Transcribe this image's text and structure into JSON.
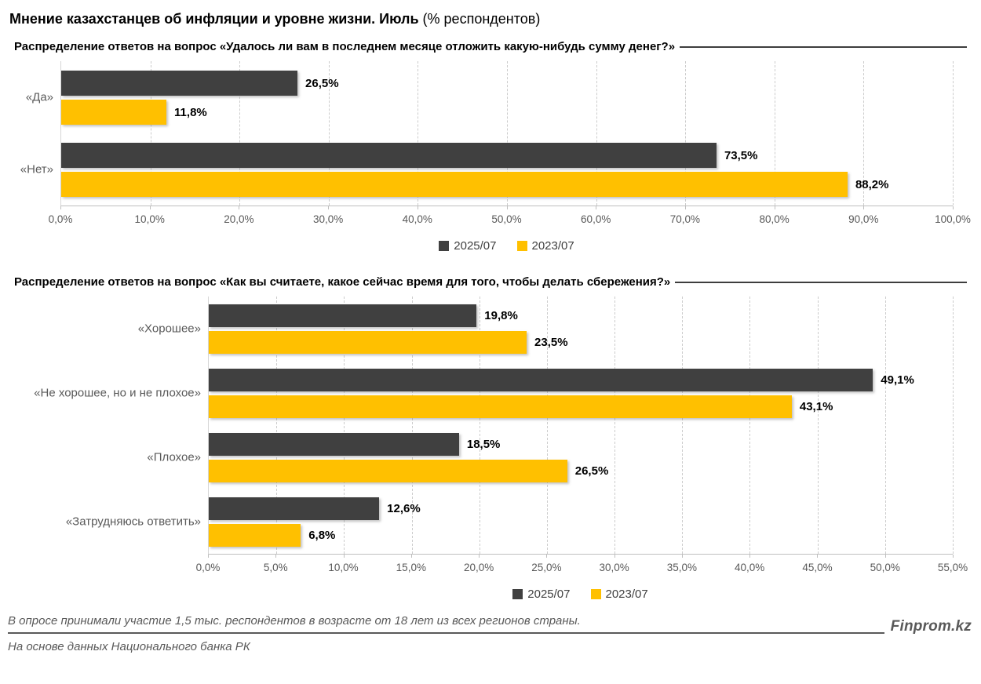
{
  "header": {
    "title_bold": "Мнение казахстанцев об инфляции и уровне жизни. Июль",
    "title_normal": " (% респондентов)"
  },
  "footer": {
    "note1": "В опросе принимали участие 1,5 тыс. респондентов в возрасте от 18 лет из всех регионов страны.",
    "note2": "На основе данных Национального банка РК",
    "brand": "Finprom.kz"
  },
  "colors": {
    "series_2025": "#404040",
    "series_2023": "#FFC000",
    "axis_text": "#595959",
    "gridline": "#CCCCCC"
  },
  "chart_data": [
    {
      "type": "bar",
      "orientation": "horizontal",
      "title": "Распределение ответов на вопрос «Удалось ли вам в последнем месяце отложить какую-нибудь сумму денег?»",
      "categories": [
        "«Да»",
        "«Нет»"
      ],
      "series": [
        {
          "name": "2025/07",
          "color": "#404040",
          "values": [
            26.5,
            73.5
          ]
        },
        {
          "name": "2023/07",
          "color": "#FFC000",
          "values": [
            11.8,
            88.2
          ]
        }
      ],
      "xlabel": "",
      "ylabel": "",
      "xlim": [
        0,
        100
      ],
      "xtick_values": [
        0,
        10,
        20,
        30,
        40,
        50,
        60,
        70,
        80,
        90,
        100
      ],
      "xtick_labels": [
        "0,0%",
        "10,0%",
        "20,0%",
        "30,0%",
        "40,0%",
        "50,0%",
        "60,0%",
        "70,0%",
        "80,0%",
        "90,0%",
        "100,0%"
      ],
      "grid": "vertical-dashed",
      "legend_position": "bottom",
      "legend": [
        "2025/07",
        "2023/07"
      ]
    },
    {
      "type": "bar",
      "orientation": "horizontal",
      "title": "Распределение ответов на вопрос «Как вы считаете, какое сейчас время для того, чтобы делать сбережения?»",
      "categories": [
        "«Хорошее»",
        "«Не хорошее, но и не плохое»",
        "«Плохое»",
        "«Затрудняюсь ответить»"
      ],
      "series": [
        {
          "name": "2025/07",
          "color": "#404040",
          "values": [
            19.8,
            49.1,
            18.5,
            12.6
          ]
        },
        {
          "name": "2023/07",
          "color": "#FFC000",
          "values": [
            23.5,
            43.1,
            26.5,
            6.8
          ]
        }
      ],
      "xlabel": "",
      "ylabel": "",
      "xlim": [
        0,
        55
      ],
      "xtick_values": [
        0,
        5,
        10,
        15,
        20,
        25,
        30,
        35,
        40,
        45,
        50,
        55
      ],
      "xtick_labels": [
        "0,0%",
        "5,0%",
        "10,0%",
        "15,0%",
        "20,0%",
        "25,0%",
        "30,0%",
        "35,0%",
        "40,0%",
        "45,0%",
        "50,0%",
        "55,0%"
      ],
      "grid": "vertical-dashed",
      "legend_position": "bottom",
      "legend": [
        "2025/07",
        "2023/07"
      ]
    }
  ]
}
